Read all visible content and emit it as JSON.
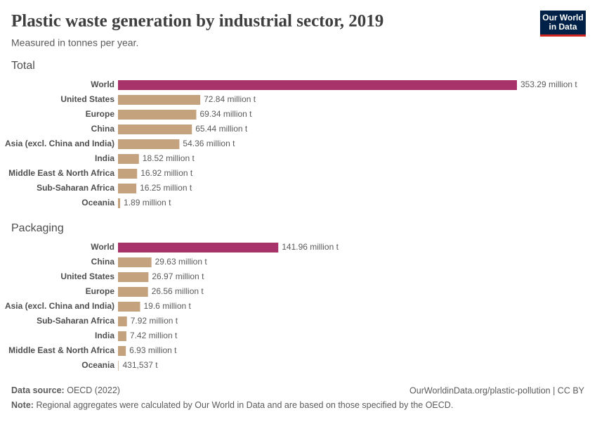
{
  "header": {
    "title": "Plastic waste generation by industrial sector, 2019",
    "subtitle": "Measured in tonnes per year.",
    "logo": [
      "Our World",
      "in Data"
    ]
  },
  "footer": {
    "source_label": "Data source:",
    "source": "OECD (2022)",
    "url": "OurWorldinData.org/plastic-pollution | CC BY",
    "note_label": "Note:",
    "note": "Regional aggregates were calculated by Our World in Data and are based on those specified by the OECD."
  },
  "chart_data": [
    {
      "type": "bar",
      "orientation": "horizontal",
      "title": "Total",
      "categories": [
        "World",
        "United States",
        "Europe",
        "China",
        "Asia (excl. China and India)",
        "India",
        "Middle East & North Africa",
        "Sub-Saharan Africa",
        "Oceania"
      ],
      "values": [
        353290000,
        72840000,
        69340000,
        65440000,
        54360000,
        18520000,
        16920000,
        16250000,
        1890000
      ],
      "value_labels": [
        "353.29 million t",
        "72.84 million t",
        "69.34 million t",
        "65.44 million t",
        "54.36 million t",
        "18.52 million t",
        "16.92 million t",
        "16.25 million t",
        "1.89 million t"
      ],
      "colors": [
        "#a8326a",
        "#c4a27d",
        "#c4a27d",
        "#c4a27d",
        "#c4a27d",
        "#c4a27d",
        "#c4a27d",
        "#c4a27d",
        "#c4a27d"
      ]
    },
    {
      "type": "bar",
      "orientation": "horizontal",
      "title": "Packaging",
      "categories": [
        "World",
        "China",
        "United States",
        "Europe",
        "Asia (excl. China and India)",
        "Sub-Saharan Africa",
        "India",
        "Middle East & North Africa",
        "Oceania"
      ],
      "values": [
        141960000,
        29630000,
        26970000,
        26560000,
        19600000,
        7920000,
        7420000,
        6930000,
        431537
      ],
      "value_labels": [
        "141.96 million t",
        "29.63 million t",
        "26.97 million t",
        "26.56 million t",
        "19.6 million t",
        "7.92 million t",
        "7.42 million t",
        "6.93 million t",
        "431,537 t"
      ],
      "colors": [
        "#a8326a",
        "#c4a27d",
        "#c4a27d",
        "#c4a27d",
        "#c4a27d",
        "#c4a27d",
        "#c4a27d",
        "#c4a27d",
        "#c4a27d"
      ]
    }
  ]
}
